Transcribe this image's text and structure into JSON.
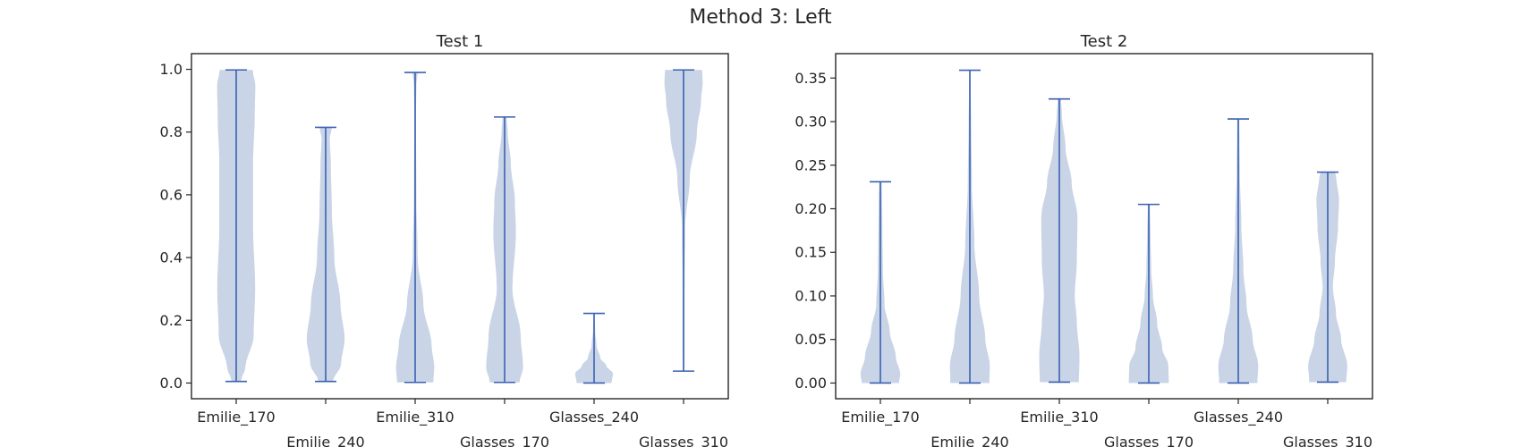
{
  "figure": {
    "title": "Method 3: Left"
  },
  "chart_data": [
    {
      "type": "violin",
      "title": "Test 1",
      "xlabel": "",
      "ylabel": "",
      "categories": [
        "Emilie_170",
        "Emilie_240",
        "Emilie_310",
        "Glasses_170",
        "Glasses_240",
        "Glasses_310"
      ],
      "ylim": [
        -0.05,
        1.05
      ],
      "yticks": [
        0.0,
        0.2,
        0.4,
        0.6,
        0.8,
        1.0
      ],
      "ytick_labels": [
        "0.0",
        "0.2",
        "0.4",
        "0.6",
        "0.8",
        "1.0"
      ],
      "violin_color": "#c9d4e6",
      "line_color": "#3a61b3",
      "violins": [
        {
          "min": 0.005,
          "max": 0.998,
          "profile": [
            [
              0.005,
              0.22
            ],
            [
              0.05,
              0.45
            ],
            [
              0.15,
              0.85
            ],
            [
              0.3,
              0.92
            ],
            [
              0.5,
              0.82
            ],
            [
              0.7,
              0.82
            ],
            [
              0.85,
              0.9
            ],
            [
              0.95,
              0.93
            ],
            [
              0.998,
              0.8
            ]
          ]
        },
        {
          "min": 0.005,
          "max": 0.815,
          "profile": [
            [
              0.005,
              0.35
            ],
            [
              0.06,
              0.75
            ],
            [
              0.14,
              0.92
            ],
            [
              0.25,
              0.72
            ],
            [
              0.4,
              0.42
            ],
            [
              0.55,
              0.3
            ],
            [
              0.7,
              0.25
            ],
            [
              0.78,
              0.2
            ],
            [
              0.815,
              0.3
            ]
          ]
        },
        {
          "min": 0.002,
          "max": 0.99,
          "profile": [
            [
              0.002,
              0.88
            ],
            [
              0.05,
              0.93
            ],
            [
              0.12,
              0.8
            ],
            [
              0.25,
              0.4
            ],
            [
              0.4,
              0.12
            ],
            [
              0.6,
              0.06
            ],
            [
              0.85,
              0.04
            ],
            [
              0.95,
              0.06
            ],
            [
              0.99,
              0.12
            ]
          ]
        },
        {
          "min": 0.002,
          "max": 0.848,
          "profile": [
            [
              0.002,
              0.72
            ],
            [
              0.05,
              0.9
            ],
            [
              0.15,
              0.78
            ],
            [
              0.3,
              0.38
            ],
            [
              0.48,
              0.55
            ],
            [
              0.58,
              0.5
            ],
            [
              0.7,
              0.3
            ],
            [
              0.8,
              0.15
            ],
            [
              0.848,
              0.1
            ]
          ]
        },
        {
          "min": 0.0,
          "max": 0.222,
          "profile": [
            [
              0.0,
              0.85
            ],
            [
              0.03,
              0.92
            ],
            [
              0.055,
              0.6
            ],
            [
              0.08,
              0.3
            ],
            [
              0.12,
              0.12
            ],
            [
              0.17,
              0.05
            ],
            [
              0.222,
              0.03
            ]
          ]
        },
        {
          "min": 0.038,
          "max": 0.998,
          "profile": [
            [
              0.038,
              0.04
            ],
            [
              0.12,
              0.05
            ],
            [
              0.3,
              0.05
            ],
            [
              0.5,
              0.08
            ],
            [
              0.65,
              0.3
            ],
            [
              0.8,
              0.65
            ],
            [
              0.9,
              0.85
            ],
            [
              0.96,
              0.93
            ],
            [
              0.998,
              0.9
            ]
          ]
        }
      ]
    },
    {
      "type": "violin",
      "title": "Test 2",
      "xlabel": "",
      "ylabel": "",
      "categories": [
        "Emilie_170",
        "Emilie_240",
        "Emilie_310",
        "Glasses_170",
        "Glasses_240",
        "Glasses_310"
      ],
      "ylim": [
        -0.018,
        0.378
      ],
      "yticks": [
        0.0,
        0.05,
        0.1,
        0.15,
        0.2,
        0.25,
        0.3,
        0.35
      ],
      "ytick_labels": [
        "0.00",
        "0.05",
        "0.10",
        "0.15",
        "0.20",
        "0.25",
        "0.30",
        "0.35"
      ],
      "violin_color": "#c9d4e6",
      "line_color": "#3a61b3",
      "violins": [
        {
          "min": 0.0,
          "max": 0.231,
          "profile": [
            [
              0.0,
              0.9
            ],
            [
              0.01,
              0.97
            ],
            [
              0.03,
              0.75
            ],
            [
              0.06,
              0.45
            ],
            [
              0.09,
              0.2
            ],
            [
              0.13,
              0.12
            ],
            [
              0.17,
              0.1
            ],
            [
              0.21,
              0.08
            ],
            [
              0.231,
              0.06
            ]
          ]
        },
        {
          "min": 0.0,
          "max": 0.359,
          "profile": [
            [
              0.0,
              0.95
            ],
            [
              0.02,
              0.97
            ],
            [
              0.05,
              0.75
            ],
            [
              0.1,
              0.45
            ],
            [
              0.16,
              0.22
            ],
            [
              0.23,
              0.1
            ],
            [
              0.3,
              0.06
            ],
            [
              0.34,
              0.04
            ],
            [
              0.359,
              0.03
            ]
          ]
        },
        {
          "min": 0.001,
          "max": 0.326,
          "profile": [
            [
              0.001,
              0.95
            ],
            [
              0.03,
              0.98
            ],
            [
              0.07,
              0.85
            ],
            [
              0.1,
              0.75
            ],
            [
              0.14,
              0.85
            ],
            [
              0.19,
              0.88
            ],
            [
              0.23,
              0.6
            ],
            [
              0.27,
              0.3
            ],
            [
              0.31,
              0.12
            ],
            [
              0.326,
              0.08
            ]
          ]
        },
        {
          "min": 0.0,
          "max": 0.205,
          "profile": [
            [
              0.0,
              0.97
            ],
            [
              0.02,
              0.95
            ],
            [
              0.04,
              0.65
            ],
            [
              0.07,
              0.4
            ],
            [
              0.1,
              0.2
            ],
            [
              0.13,
              0.12
            ],
            [
              0.17,
              0.08
            ],
            [
              0.205,
              0.05
            ]
          ]
        },
        {
          "min": 0.0,
          "max": 0.303,
          "profile": [
            [
              0.0,
              0.93
            ],
            [
              0.02,
              0.97
            ],
            [
              0.05,
              0.7
            ],
            [
              0.09,
              0.4
            ],
            [
              0.13,
              0.25
            ],
            [
              0.18,
              0.15
            ],
            [
              0.24,
              0.08
            ],
            [
              0.28,
              0.06
            ],
            [
              0.303,
              0.05
            ]
          ]
        },
        {
          "min": 0.001,
          "max": 0.242,
          "profile": [
            [
              0.001,
              0.9
            ],
            [
              0.02,
              0.95
            ],
            [
              0.05,
              0.65
            ],
            [
              0.08,
              0.4
            ],
            [
              0.11,
              0.25
            ],
            [
              0.14,
              0.35
            ],
            [
              0.18,
              0.5
            ],
            [
              0.21,
              0.55
            ],
            [
              0.235,
              0.42
            ],
            [
              0.242,
              0.35
            ]
          ]
        }
      ]
    }
  ]
}
